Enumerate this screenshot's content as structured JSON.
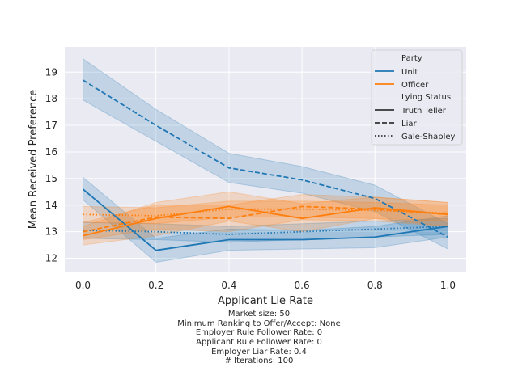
{
  "chart_data": {
    "type": "line",
    "xlabel": "Applicant Lie Rate",
    "ylabel": "Mean Received Preference",
    "x": [
      0.0,
      0.2,
      0.4,
      0.6,
      0.8,
      1.0
    ],
    "x_tick_labels": [
      "0.0",
      "0.2",
      "0.4",
      "0.6",
      "0.8",
      "1.0"
    ],
    "y_ticks": [
      12,
      13,
      14,
      15,
      16,
      17,
      18,
      19
    ],
    "xlim": [
      -0.05,
      1.05
    ],
    "ylim": [
      11.5,
      19.95
    ],
    "grid": true,
    "legend_position": "top-right",
    "legend": {
      "party_title": "Party",
      "party_entries": [
        {
          "name": "Unit",
          "color": "#1f77b4"
        },
        {
          "name": "Officer",
          "color": "#ff7f0e"
        }
      ],
      "status_title": "Lying Status",
      "status_entries": [
        {
          "name": "Truth Teller",
          "style": "solid"
        },
        {
          "name": "Liar",
          "style": "dashed"
        },
        {
          "name": "Gale-Shapley",
          "style": "dotted"
        }
      ]
    },
    "series": [
      {
        "party": "Unit",
        "status": "Truth Teller",
        "color": "#1f77b4",
        "style": "solid",
        "values": [
          14.6,
          12.3,
          12.7,
          12.7,
          12.8,
          13.2
        ],
        "lower": [
          14.2,
          11.85,
          12.3,
          12.35,
          12.4,
          12.8
        ],
        "upper": [
          15.05,
          12.75,
          13.1,
          13.05,
          13.2,
          13.6
        ]
      },
      {
        "party": "Unit",
        "status": "Liar",
        "color": "#1f77b4",
        "style": "dashed",
        "values": [
          18.7,
          17.0,
          15.4,
          14.95,
          14.25,
          12.8
        ],
        "lower": [
          17.95,
          16.4,
          14.85,
          14.45,
          13.75,
          12.35
        ],
        "upper": [
          19.5,
          17.6,
          15.95,
          15.45,
          14.75,
          13.3
        ]
      },
      {
        "party": "Unit",
        "status": "Gale-Shapley",
        "color": "#1f77b4",
        "style": "dotted",
        "values": [
          13.05,
          13.0,
          12.9,
          13.0,
          13.1,
          13.2
        ],
        "lower": [
          12.75,
          12.7,
          12.6,
          12.7,
          12.8,
          12.9
        ],
        "upper": [
          13.35,
          13.3,
          13.2,
          13.3,
          13.4,
          13.5
        ]
      },
      {
        "party": "Officer",
        "status": "Truth Teller",
        "color": "#ff7f0e",
        "style": "solid",
        "values": [
          12.85,
          13.5,
          13.95,
          13.5,
          13.9,
          13.65
        ],
        "lower": [
          12.5,
          12.85,
          13.4,
          13.0,
          13.5,
          13.2
        ],
        "upper": [
          13.2,
          14.1,
          14.5,
          14.05,
          14.3,
          14.1
        ]
      },
      {
        "party": "Officer",
        "status": "Liar",
        "color": "#ff7f0e",
        "style": "dashed",
        "values": [
          13.0,
          13.55,
          13.5,
          13.95,
          13.85,
          13.65
        ],
        "lower": [
          12.7,
          13.1,
          13.0,
          13.45,
          13.4,
          13.2
        ],
        "upper": [
          13.35,
          14.0,
          14.0,
          14.4,
          14.3,
          14.1
        ]
      },
      {
        "party": "Officer",
        "status": "Gale-Shapley",
        "color": "#ff7f0e",
        "style": "dotted",
        "values": [
          13.65,
          13.6,
          13.85,
          13.85,
          13.8,
          13.7
        ],
        "lower": [
          13.35,
          13.3,
          13.55,
          13.55,
          13.5,
          13.4
        ],
        "upper": [
          13.95,
          13.9,
          14.15,
          14.15,
          14.1,
          14.0
        ]
      }
    ]
  },
  "caption_lines": [
    "Market size: 50",
    "Minimum Ranking to Offer/Accept: None",
    "Employer Rule Follower Rate: 0",
    "Applicant Rule Follower Rate: 0",
    "Employer Liar Rate: 0.4",
    "# Iterations: 100"
  ]
}
